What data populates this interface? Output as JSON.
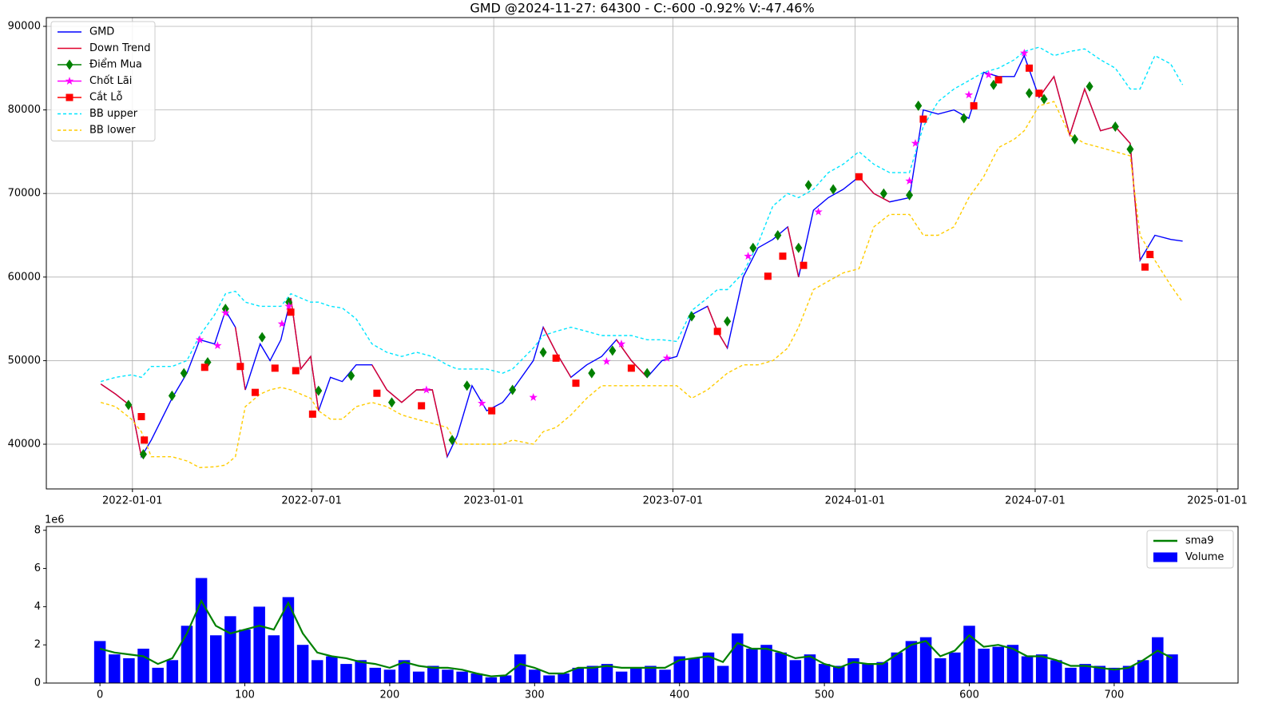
{
  "chart_data": [
    {
      "type": "line",
      "title": "GMD @2024-11-27: 64300 - C:-600 -0.92% V:-47.46%",
      "x": [
        "2021-11-30",
        "2021-12-15",
        "2021-12-31",
        "2022-01-10",
        "2022-01-20",
        "2022-02-10",
        "2022-02-25",
        "2022-03-10",
        "2022-03-25",
        "2022-04-05",
        "2022-04-15",
        "2022-04-25",
        "2022-05-10",
        "2022-05-20",
        "2022-05-31",
        "2022-06-10",
        "2022-06-20",
        "2022-06-30",
        "2022-07-08",
        "2022-07-20",
        "2022-08-01",
        "2022-08-15",
        "2022-08-31",
        "2022-09-15",
        "2022-09-30",
        "2022-10-15",
        "2022-10-31",
        "2022-11-15",
        "2022-11-25",
        "2022-12-10",
        "2022-12-25",
        "2023-01-10",
        "2023-01-20",
        "2023-02-10",
        "2023-02-20",
        "2023-03-05",
        "2023-03-20",
        "2023-04-05",
        "2023-04-20",
        "2023-05-05",
        "2023-05-20",
        "2023-06-05",
        "2023-06-20",
        "2023-07-05",
        "2023-07-20",
        "2023-08-05",
        "2023-08-15",
        "2023-08-25",
        "2023-09-10",
        "2023-09-25",
        "2023-10-10",
        "2023-10-25",
        "2023-11-05",
        "2023-11-20",
        "2023-12-05",
        "2023-12-20",
        "2024-01-05",
        "2024-01-20",
        "2024-02-05",
        "2024-02-25",
        "2024-03-10",
        "2024-03-25",
        "2024-04-10",
        "2024-04-25",
        "2024-05-10",
        "2024-05-25",
        "2024-06-10",
        "2024-06-20",
        "2024-07-05",
        "2024-07-20",
        "2024-08-05",
        "2024-08-20",
        "2024-09-05",
        "2024-09-20",
        "2024-10-05",
        "2024-10-15",
        "2024-10-30",
        "2024-11-15",
        "2024-11-27"
      ],
      "series": [
        {
          "name": "GMD",
          "color": "#0000ff",
          "values": [
            47200,
            46000,
            44500,
            38500,
            40500,
            45500,
            48500,
            52500,
            52000,
            56000,
            54000,
            46500,
            52000,
            50000,
            52500,
            57500,
            49000,
            50500,
            44000,
            48000,
            47500,
            49500,
            49500,
            46500,
            45000,
            46500,
            46500,
            38500,
            41000,
            47000,
            44000,
            45000,
            46500,
            50000,
            54000,
            51000,
            48000,
            49500,
            50500,
            52500,
            50000,
            48000,
            50000,
            50500,
            55500,
            56500,
            53500,
            51500,
            60000,
            63500,
            64500,
            66000,
            60000,
            68000,
            69500,
            70500,
            72000,
            70000,
            69000,
            69500,
            80000,
            79500,
            80000,
            79000,
            84500,
            84000,
            84000,
            86500,
            81500,
            84000,
            77000,
            82500,
            77500,
            78000,
            76000,
            62000,
            65000,
            64500,
            64300
          ]
        },
        {
          "name": "Down Trend",
          "color": "#e0002a",
          "values": [
            47200,
            46000,
            44500,
            38500,
            null,
            null,
            null,
            null,
            null,
            null,
            54000,
            46500,
            null,
            null,
            null,
            57500,
            49000,
            50500,
            44000,
            null,
            null,
            null,
            49500,
            46500,
            45000,
            46500,
            46500,
            38500,
            null,
            null,
            null,
            null,
            null,
            null,
            54000,
            51000,
            48000,
            null,
            null,
            52500,
            50000,
            48000,
            null,
            null,
            null,
            56500,
            53500,
            51500,
            null,
            null,
            null,
            66000,
            60000,
            null,
            null,
            null,
            72000,
            70000,
            69000,
            null,
            null,
            null,
            null,
            null,
            null,
            null,
            null,
            null,
            81500,
            84000,
            77000,
            82500,
            77500,
            78000,
            76000,
            62000,
            null,
            null,
            null
          ]
        },
        {
          "name": "Điểm Mua",
          "color": "#008000",
          "marker": "diamond",
          "x": [
            "2021-12-28",
            "2022-01-12",
            "2022-02-10",
            "2022-02-22",
            "2022-03-18",
            "2022-04-05",
            "2022-05-12",
            "2022-06-08",
            "2022-07-08",
            "2022-08-10",
            "2022-09-20",
            "2022-11-20",
            "2022-12-05",
            "2023-01-20",
            "2023-02-20",
            "2023-04-10",
            "2023-05-01",
            "2023-06-05",
            "2023-07-20",
            "2023-08-25",
            "2023-09-20",
            "2023-10-15",
            "2023-11-05",
            "2023-11-15",
            "2023-12-10",
            "2024-01-30",
            "2024-02-25",
            "2024-03-05",
            "2024-04-20",
            "2024-05-20",
            "2024-06-25",
            "2024-07-10",
            "2024-08-10",
            "2024-08-25",
            "2024-09-20",
            "2024-10-05"
          ],
          "values": [
            44700,
            38800,
            45800,
            48500,
            49800,
            56200,
            52800,
            57000,
            46400,
            48200,
            45000,
            40500,
            47000,
            46500,
            51000,
            48500,
            51200,
            48500,
            55300,
            54700,
            63500,
            65000,
            63500,
            71000,
            70500,
            70000,
            69800,
            80500,
            79000,
            83000,
            82000,
            81300,
            76500,
            82800,
            78000,
            75300
          ]
        },
        {
          "name": "Chốt Lãi",
          "color": "#ff00ff",
          "marker": "star",
          "x": [
            "2022-03-10",
            "2022-03-28",
            "2022-04-05",
            "2022-06-01",
            "2022-06-08",
            "2022-10-25",
            "2022-12-20",
            "2023-02-10",
            "2023-04-25",
            "2023-05-10",
            "2023-06-25",
            "2023-09-15",
            "2023-11-25",
            "2024-02-25",
            "2024-03-02",
            "2024-04-25",
            "2024-05-15",
            "2024-06-20"
          ],
          "values": [
            52500,
            51800,
            55700,
            54400,
            56500,
            46500,
            44900,
            45600,
            49900,
            52000,
            50300,
            62500,
            67800,
            71500,
            76000,
            81800,
            84200,
            86800
          ]
        },
        {
          "name": "Cắt Lỗ",
          "color": "#ff0000",
          "marker": "square",
          "x": [
            "2022-01-10",
            "2022-01-13",
            "2022-03-15",
            "2022-04-20",
            "2022-05-05",
            "2022-05-25",
            "2022-06-10",
            "2022-06-15",
            "2022-07-02",
            "2022-09-05",
            "2022-10-20",
            "2022-12-30",
            "2023-03-05",
            "2023-03-25",
            "2023-05-20",
            "2023-08-15",
            "2023-10-05",
            "2023-10-20",
            "2023-11-10",
            "2024-01-05",
            "2024-03-10",
            "2024-04-30",
            "2024-05-25",
            "2024-06-25",
            "2024-07-05",
            "2024-10-20",
            "2024-10-25"
          ],
          "values": [
            43300,
            40500,
            49200,
            49300,
            46200,
            49100,
            55800,
            48800,
            43600,
            46100,
            44600,
            44000,
            50300,
            47300,
            49100,
            53500,
            60100,
            62500,
            61400,
            72000,
            78900,
            80500,
            83600,
            85000,
            82000,
            61200,
            62700
          ]
        },
        {
          "name": "BB upper",
          "color": "#00e5ff",
          "linestyle": "dashed",
          "values": [
            47500,
            48000,
            48300,
            48000,
            49300,
            49300,
            50000,
            53000,
            55500,
            58000,
            58300,
            57000,
            56500,
            56500,
            56500,
            58000,
            57500,
            57000,
            57000,
            56500,
            56300,
            55000,
            52000,
            51000,
            50500,
            51000,
            50500,
            49500,
            49000,
            49000,
            49000,
            48500,
            49000,
            51500,
            53000,
            53500,
            54000,
            53500,
            53000,
            53000,
            53000,
            52500,
            52500,
            52300,
            56000,
            57500,
            58500,
            58500,
            60500,
            64000,
            68500,
            70000,
            69500,
            70500,
            72500,
            73500,
            75000,
            73500,
            72500,
            72500,
            78000,
            81000,
            82500,
            83500,
            84500,
            85000,
            86000,
            87000,
            87500,
            86500,
            87000,
            87300,
            86000,
            85000,
            82500,
            82500,
            86500,
            85500,
            83000
          ]
        },
        {
          "name": "BB lower",
          "color": "#ffcc00",
          "linestyle": "dashed",
          "values": [
            45000,
            44500,
            43000,
            41500,
            38500,
            38500,
            38000,
            37200,
            37300,
            37500,
            38500,
            44500,
            46000,
            46500,
            46800,
            46500,
            46000,
            45500,
            44000,
            43000,
            43000,
            44500,
            45000,
            44500,
            43500,
            43000,
            42500,
            42000,
            40000,
            40000,
            40000,
            40000,
            40500,
            40000,
            41500,
            42000,
            43500,
            45500,
            47000,
            47000,
            47000,
            47000,
            47000,
            47000,
            45500,
            46500,
            47500,
            48500,
            49500,
            49500,
            50000,
            51500,
            54000,
            58500,
            59500,
            60500,
            61000,
            66000,
            67500,
            67500,
            65000,
            65000,
            66000,
            69500,
            72000,
            75500,
            76500,
            77500,
            80500,
            81000,
            77000,
            76000,
            75500,
            75000,
            74500,
            65000,
            62000,
            59000,
            57000
          ]
        }
      ],
      "xlim": [
        "2021-10-06",
        "2025-01-22"
      ],
      "xticks": [
        "2022-01-01",
        "2022-07-01",
        "2023-01-01",
        "2023-07-01",
        "2024-01-01",
        "2024-07-01",
        "2025-01-01"
      ],
      "ylim": [
        34650,
        91050
      ],
      "yticks": [
        40000,
        50000,
        60000,
        70000,
        80000,
        90000
      ],
      "grid": true,
      "legend": "upper-left"
    },
    {
      "type": "bar",
      "y_offset_label": "1e6",
      "x": [
        0,
        10,
        20,
        30,
        40,
        50,
        60,
        70,
        80,
        90,
        100,
        110,
        120,
        130,
        140,
        150,
        160,
        170,
        180,
        190,
        200,
        210,
        220,
        230,
        240,
        250,
        260,
        270,
        280,
        290,
        300,
        310,
        320,
        330,
        340,
        350,
        360,
        370,
        380,
        390,
        400,
        410,
        420,
        430,
        440,
        450,
        460,
        470,
        480,
        490,
        500,
        510,
        520,
        530,
        540,
        550,
        560,
        570,
        580,
        590,
        600,
        610,
        620,
        630,
        640,
        650,
        660,
        670,
        680,
        690,
        700,
        710,
        720,
        730,
        740
      ],
      "series": [
        {
          "name": "sma9",
          "color": "#008000",
          "type": "line",
          "values": [
            1.8,
            1.6,
            1.5,
            1.4,
            1.0,
            1.3,
            2.6,
            4.3,
            3.0,
            2.6,
            2.8,
            3.0,
            2.8,
            4.2,
            2.6,
            1.6,
            1.4,
            1.3,
            1.1,
            1.0,
            0.8,
            1.1,
            0.9,
            0.8,
            0.8,
            0.7,
            0.5,
            0.35,
            0.4,
            1.0,
            0.8,
            0.5,
            0.5,
            0.8,
            0.8,
            0.9,
            0.8,
            0.8,
            0.8,
            0.8,
            1.2,
            1.3,
            1.4,
            1.1,
            2.1,
            1.8,
            1.8,
            1.6,
            1.3,
            1.4,
            1.0,
            0.8,
            1.1,
            1.0,
            1.0,
            1.5,
            2.0,
            2.2,
            1.4,
            1.7,
            2.5,
            1.9,
            2.0,
            1.8,
            1.4,
            1.4,
            1.2,
            0.9,
            0.9,
            0.8,
            0.7,
            0.8,
            1.2,
            1.7,
            1.3
          ]
        },
        {
          "name": "Volume",
          "color": "#0000ff",
          "values": [
            2.2,
            1.5,
            1.3,
            1.8,
            0.8,
            1.2,
            3.0,
            5.5,
            2.5,
            3.5,
            2.8,
            4.0,
            2.5,
            4.5,
            2.0,
            1.2,
            1.4,
            1.0,
            1.2,
            0.8,
            0.7,
            1.2,
            0.6,
            0.9,
            0.7,
            0.6,
            0.5,
            0.3,
            0.4,
            1.5,
            0.7,
            0.4,
            0.5,
            0.8,
            0.9,
            1.0,
            0.6,
            0.8,
            0.9,
            0.7,
            1.4,
            1.3,
            1.6,
            0.9,
            2.6,
            1.8,
            2.0,
            1.6,
            1.2,
            1.5,
            1.0,
            0.9,
            1.3,
            1.0,
            1.1,
            1.6,
            2.2,
            2.4,
            1.3,
            1.6,
            3.0,
            1.8,
            1.9,
            2.0,
            1.4,
            1.5,
            1.2,
            0.8,
            1.0,
            0.9,
            0.8,
            0.9,
            1.2,
            2.4,
            1.5
          ]
        }
      ],
      "xlim": [
        -37,
        785.5
      ],
      "xticks": [
        0,
        100,
        200,
        300,
        400,
        500,
        600,
        700
      ],
      "ylim": [
        0,
        8.2
      ],
      "yticks": [
        0,
        2,
        4,
        6,
        8
      ],
      "grid": false,
      "legend": "upper-right"
    }
  ]
}
